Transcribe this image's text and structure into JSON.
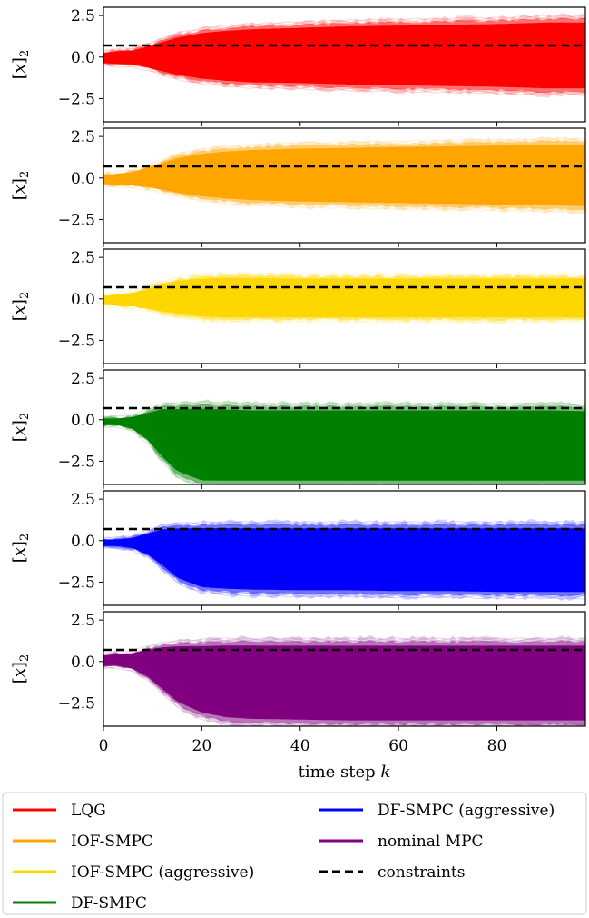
{
  "chart_data": {
    "type": "area",
    "layout": "6 vertically stacked panels sharing x axis",
    "xlabel": "time step k",
    "xlim": [
      0,
      98
    ],
    "x_ticks": [
      0,
      20,
      40,
      60,
      80
    ],
    "x_tick_labels": [
      "0",
      "20",
      "40",
      "60",
      "80"
    ],
    "ylabel": "[x]2",
    "ylim": [
      -3.9,
      3.0
    ],
    "y_ticks": [
      2.5,
      0.0,
      -2.5
    ],
    "y_tick_labels": [
      "2.5",
      "0.0",
      "−2.5"
    ],
    "constraint": {
      "name": "constraints",
      "y": 0.7,
      "style": "dashed",
      "color": "#000000"
    },
    "series": [
      {
        "name": "LQG",
        "color": "#ff0000",
        "band_x": [
          0,
          3,
          6,
          9,
          12,
          15,
          20,
          25,
          30,
          40,
          50,
          60,
          70,
          80,
          90,
          98
        ],
        "band_upper": [
          0.3,
          0.4,
          0.45,
          0.7,
          1.0,
          1.3,
          1.6,
          1.75,
          1.85,
          1.95,
          2.05,
          2.1,
          2.15,
          2.2,
          2.3,
          2.3
        ],
        "band_lower": [
          -0.4,
          -0.45,
          -0.5,
          -0.7,
          -0.95,
          -1.2,
          -1.45,
          -1.6,
          -1.7,
          -1.75,
          -1.85,
          -1.9,
          -1.95,
          -2.0,
          -2.1,
          -2.1
        ]
      },
      {
        "name": "IOF-SMPC",
        "color": "#ffa500",
        "band_x": [
          0,
          3,
          6,
          9,
          12,
          15,
          20,
          25,
          30,
          40,
          50,
          60,
          70,
          80,
          90,
          98
        ],
        "band_upper": [
          0.2,
          0.3,
          0.4,
          0.7,
          1.0,
          1.3,
          1.6,
          1.75,
          1.85,
          1.95,
          2.0,
          2.05,
          2.1,
          2.15,
          2.2,
          2.2
        ],
        "band_lower": [
          -0.4,
          -0.45,
          -0.5,
          -0.6,
          -0.8,
          -1.0,
          -1.25,
          -1.4,
          -1.5,
          -1.6,
          -1.65,
          -1.7,
          -1.75,
          -1.8,
          -1.85,
          -1.9
        ]
      },
      {
        "name": "IOF-SMPC (aggressive)",
        "color": "#ffd700",
        "band_x": [
          0,
          3,
          6,
          9,
          12,
          15,
          20,
          25,
          30,
          40,
          50,
          60,
          70,
          80,
          90,
          98
        ],
        "band_upper": [
          0.2,
          0.3,
          0.4,
          0.65,
          0.95,
          1.2,
          1.35,
          1.4,
          1.4,
          1.35,
          1.35,
          1.35,
          1.35,
          1.35,
          1.35,
          1.35
        ],
        "band_lower": [
          -0.4,
          -0.45,
          -0.5,
          -0.65,
          -0.85,
          -1.0,
          -1.2,
          -1.25,
          -1.25,
          -1.25,
          -1.25,
          -1.25,
          -1.25,
          -1.25,
          -1.25,
          -1.25
        ]
      },
      {
        "name": "DF-SMPC",
        "color": "#008000",
        "band_x": [
          0,
          3,
          6,
          9,
          12,
          15,
          20,
          25,
          30,
          40,
          50,
          60,
          70,
          80,
          90,
          98
        ],
        "band_upper": [
          0.1,
          0.1,
          0.2,
          0.5,
          0.8,
          0.85,
          0.9,
          0.85,
          0.8,
          0.8,
          0.8,
          0.8,
          0.8,
          0.8,
          0.8,
          0.75
        ],
        "band_lower": [
          -0.35,
          -0.35,
          -0.6,
          -1.3,
          -2.4,
          -3.3,
          -3.9,
          -3.9,
          -3.9,
          -3.9,
          -3.9,
          -3.9,
          -3.9,
          -3.9,
          -3.9,
          -3.9
        ]
      },
      {
        "name": "DF-SMPC (aggressive)",
        "color": "#0000ff",
        "band_x": [
          0,
          3,
          6,
          9,
          12,
          15,
          20,
          25,
          30,
          40,
          50,
          60,
          70,
          80,
          90,
          98
        ],
        "band_upper": [
          0.1,
          0.1,
          0.2,
          0.5,
          0.8,
          0.9,
          0.95,
          0.95,
          0.95,
          0.95,
          0.95,
          0.95,
          0.95,
          0.95,
          0.95,
          0.95
        ],
        "band_lower": [
          -0.35,
          -0.35,
          -0.5,
          -0.9,
          -1.6,
          -2.4,
          -3.0,
          -3.1,
          -3.15,
          -3.2,
          -3.2,
          -3.25,
          -3.25,
          -3.3,
          -3.3,
          -3.3
        ]
      },
      {
        "name": "nominal MPC",
        "color": "#800080",
        "band_x": [
          0,
          3,
          6,
          9,
          12,
          15,
          20,
          25,
          30,
          40,
          50,
          60,
          70,
          80,
          90,
          98
        ],
        "band_upper": [
          0.4,
          0.5,
          0.55,
          0.8,
          1.0,
          1.1,
          1.15,
          1.2,
          1.2,
          1.2,
          1.2,
          1.2,
          1.2,
          1.2,
          1.2,
          1.2
        ],
        "band_lower": [
          -0.3,
          -0.3,
          -0.5,
          -1.0,
          -1.8,
          -2.6,
          -3.3,
          -3.6,
          -3.7,
          -3.75,
          -3.8,
          -3.8,
          -3.8,
          -3.8,
          -3.8,
          -3.8
        ]
      }
    ],
    "legend": {
      "placement": "below plots, two columns",
      "entries": [
        {
          "label": "LQG",
          "color": "#ff0000",
          "style": "solid"
        },
        {
          "label": "IOF-SMPC",
          "color": "#ffa500",
          "style": "solid"
        },
        {
          "label": "IOF-SMPC (aggressive)",
          "color": "#ffd700",
          "style": "solid"
        },
        {
          "label": "DF-SMPC",
          "color": "#008000",
          "style": "solid"
        },
        {
          "label": "DF-SMPC (aggressive)",
          "color": "#0000ff",
          "style": "solid"
        },
        {
          "label": "nominal MPC",
          "color": "#800080",
          "style": "solid"
        },
        {
          "label": "constraints",
          "color": "#000000",
          "style": "dashed"
        }
      ]
    }
  }
}
